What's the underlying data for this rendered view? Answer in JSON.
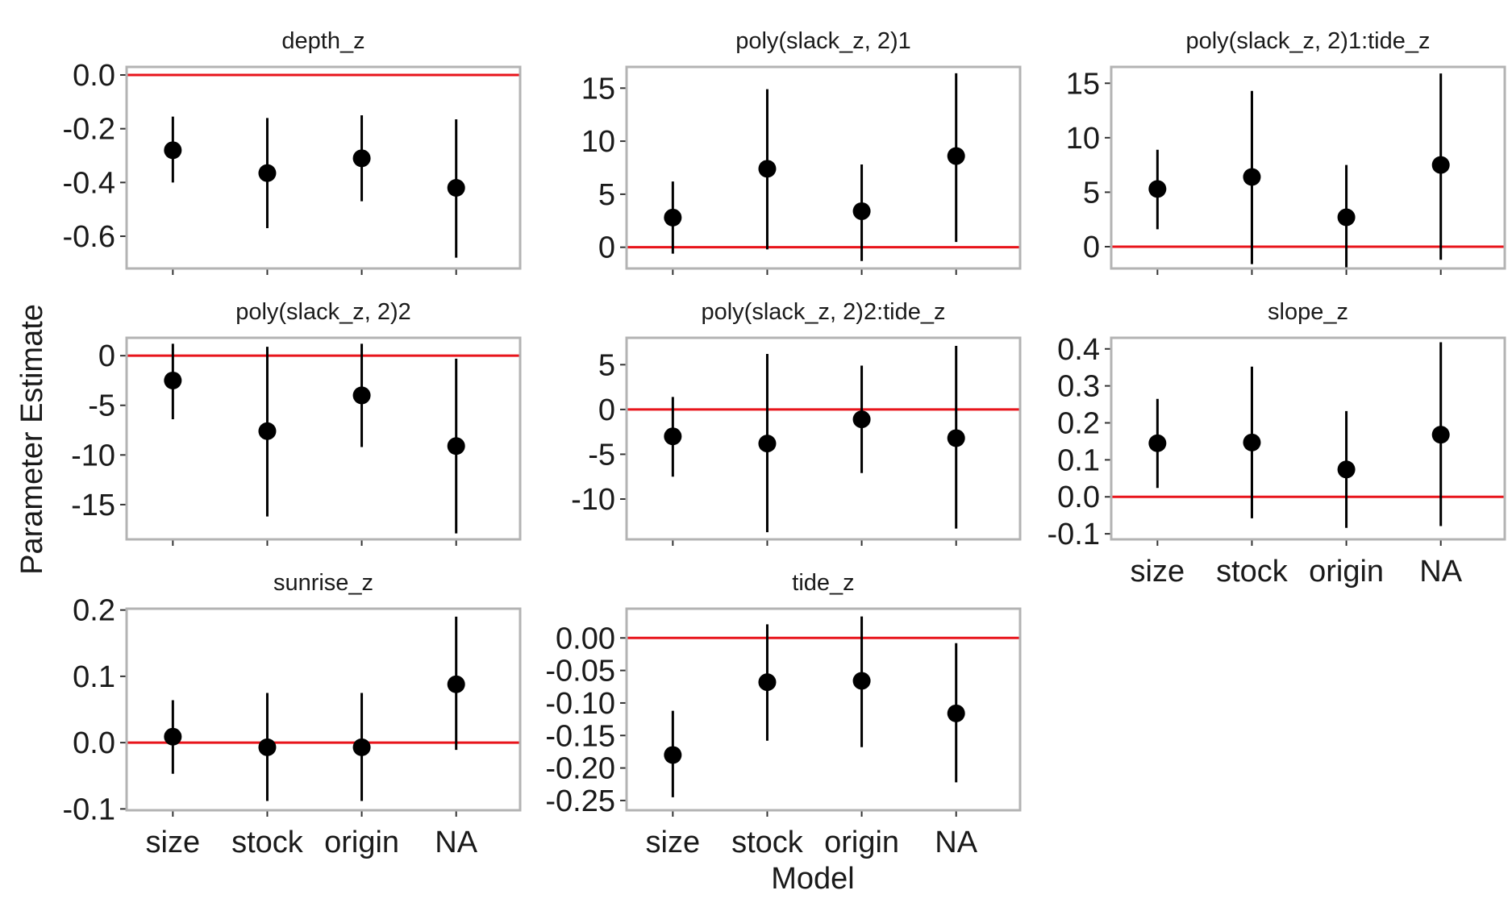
{
  "chart_data": {
    "type": "scatter",
    "xlabel": "Model",
    "ylabel": "Parameter Estimate",
    "categories": [
      "size",
      "stock",
      "origin",
      "NA"
    ],
    "reference_line": {
      "y": 0,
      "color": "#e8141b"
    },
    "colors": {
      "point": "#000000",
      "reference": "#e8141b",
      "frame": "#b3b3b3"
    },
    "panels": [
      {
        "title": "depth_z",
        "ylim": [
          -0.72,
          0.03
        ],
        "yticks": [
          0.0,
          -0.2,
          -0.4,
          -0.6
        ],
        "ytick_labels": [
          "0.0",
          "-0.2",
          "-0.4",
          "-0.6"
        ],
        "estimate": [
          -0.28,
          -0.365,
          -0.31,
          -0.42
        ],
        "lower": [
          -0.4,
          -0.57,
          -0.47,
          -0.68
        ],
        "upper": [
          -0.155,
          -0.16,
          -0.15,
          -0.165
        ]
      },
      {
        "title": "poly(slack_z, 2)1",
        "ylim": [
          -2.0,
          17.0
        ],
        "yticks": [
          0,
          5,
          10,
          15
        ],
        "ytick_labels": [
          "0",
          "5",
          "10",
          "15"
        ],
        "estimate": [
          2.8,
          7.4,
          3.4,
          8.6
        ],
        "lower": [
          -0.6,
          -0.2,
          -1.3,
          0.5
        ],
        "upper": [
          6.2,
          14.9,
          7.8,
          16.4
        ]
      },
      {
        "title": "poly(slack_z, 2)1:tide_z",
        "ylim": [
          -2.0,
          16.5
        ],
        "yticks": [
          0,
          5,
          10,
          15
        ],
        "ytick_labels": [
          "0",
          "5",
          "10",
          "15"
        ],
        "estimate": [
          5.3,
          6.4,
          2.7,
          7.5
        ],
        "lower": [
          1.6,
          -1.6,
          -2.1,
          -1.2
        ],
        "upper": [
          8.9,
          14.3,
          7.5,
          15.9
        ]
      },
      {
        "title": "poly(slack_z, 2)2",
        "ylim": [
          -18.5,
          1.8
        ],
        "yticks": [
          0,
          -5,
          -10,
          -15
        ],
        "ytick_labels": [
          "0",
          "-5",
          "-10",
          "-15"
        ],
        "estimate": [
          -2.5,
          -7.6,
          -4.0,
          -9.1
        ],
        "lower": [
          -6.4,
          -16.2,
          -9.2,
          -17.9
        ],
        "upper": [
          1.2,
          0.9,
          1.2,
          -0.3
        ]
      },
      {
        "title": "poly(slack_z, 2)2:tide_z",
        "ylim": [
          -14.5,
          8.0
        ],
        "yticks": [
          5,
          0,
          -5,
          -10
        ],
        "ytick_labels": [
          "5",
          "0",
          "-5",
          "-10"
        ],
        "estimate": [
          -3.0,
          -3.8,
          -1.1,
          -3.2
        ],
        "lower": [
          -7.5,
          -13.7,
          -7.1,
          -13.3
        ],
        "upper": [
          1.4,
          6.2,
          4.9,
          7.1
        ]
      },
      {
        "title": "slope_z",
        "ylim": [
          -0.115,
          0.43
        ],
        "yticks": [
          0.4,
          0.3,
          0.2,
          0.1,
          0.0,
          -0.1
        ],
        "ytick_labels": [
          "0.4",
          "0.3",
          "0.2",
          "0.1",
          "0.0",
          "-0.1"
        ],
        "estimate": [
          0.145,
          0.147,
          0.074,
          0.168
        ],
        "lower": [
          0.024,
          -0.058,
          -0.084,
          -0.079
        ],
        "upper": [
          0.265,
          0.352,
          0.232,
          0.418
        ]
      },
      {
        "title": "sunrise_z",
        "ylim": [
          -0.102,
          0.202
        ],
        "yticks": [
          0.2,
          0.1,
          0.0,
          -0.1
        ],
        "ytick_labels": [
          "0.2",
          "0.1",
          "0.0",
          "-0.1"
        ],
        "estimate": [
          0.009,
          -0.007,
          -0.007,
          0.088
        ],
        "lower": [
          -0.047,
          -0.088,
          -0.088,
          -0.011
        ],
        "upper": [
          0.064,
          0.075,
          0.075,
          0.19
        ]
      },
      {
        "title": "tide_z",
        "ylim": [
          -0.265,
          0.045
        ],
        "yticks": [
          0.0,
          -0.05,
          -0.1,
          -0.15,
          -0.2,
          -0.25
        ],
        "ytick_labels": [
          "0.00",
          "-0.05",
          "-0.10",
          "-0.15",
          "-0.20",
          "-0.25"
        ],
        "estimate": [
          -0.18,
          -0.068,
          -0.066,
          -0.116
        ],
        "lower": [
          -0.245,
          -0.158,
          -0.168,
          -0.222
        ],
        "upper": [
          -0.112,
          0.021,
          0.033,
          -0.008
        ]
      }
    ]
  }
}
